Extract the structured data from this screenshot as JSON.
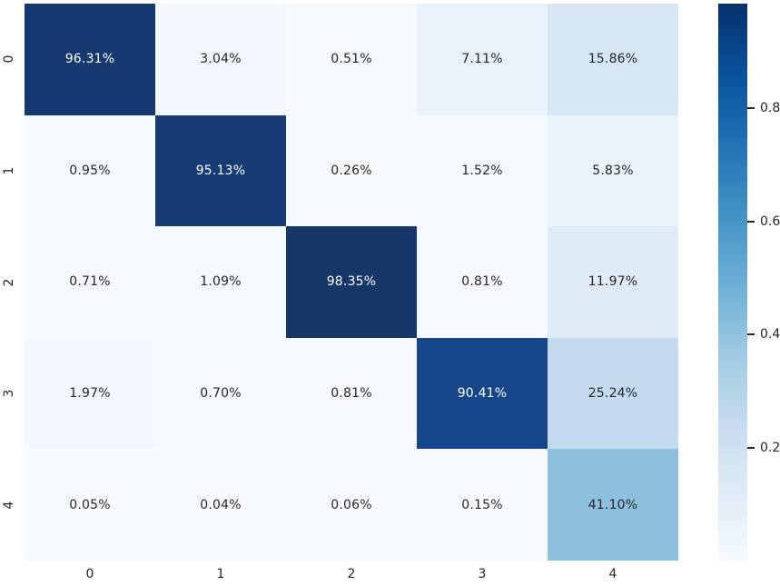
{
  "figure": {
    "kind": "confusion-matrix-heatmap",
    "background": "#ffffff",
    "annotation_dark_text": "#262626",
    "annotation_light_text": "#ffffff"
  },
  "chart_data": {
    "type": "heatmap",
    "title": "",
    "xlabel": "",
    "ylabel": "",
    "x_labels": [
      "0",
      "1",
      "2",
      "3",
      "4"
    ],
    "y_labels": [
      "0",
      "1",
      "2",
      "3",
      "4"
    ],
    "cell_labels": [
      [
        "96.31%",
        "3.04%",
        "0.51%",
        "7.11%",
        "15.86%"
      ],
      [
        "0.95%",
        "95.13%",
        "0.26%",
        "1.52%",
        "5.83%"
      ],
      [
        "0.71%",
        "1.09%",
        "98.35%",
        "0.81%",
        "11.97%"
      ],
      [
        "1.97%",
        "0.70%",
        "0.81%",
        "90.41%",
        "25.24%"
      ],
      [
        "0.05%",
        "0.04%",
        "0.06%",
        "0.15%",
        "41.10%"
      ]
    ],
    "cell_values": [
      [
        0.9631,
        0.0304,
        0.0051,
        0.0711,
        0.1586
      ],
      [
        0.0095,
        0.9513,
        0.0026,
        0.0152,
        0.0583
      ],
      [
        0.0071,
        0.0109,
        0.9835,
        0.0081,
        0.1197
      ],
      [
        0.0197,
        0.007,
        0.0081,
        0.9041,
        0.2524
      ],
      [
        0.0005,
        0.0004,
        0.0006,
        0.0015,
        0.411
      ]
    ],
    "cell_bg": [
      [
        "#14386f",
        "#f1f7fd",
        "#f6fafe",
        "#e9f2fa",
        "#d7e6f5"
      ],
      [
        "#f5fafe",
        "#173b74",
        "#f7fbfe",
        "#f4f9fe",
        "#ebf3fb"
      ],
      [
        "#f6fafe",
        "#f5fafe",
        "#163568",
        "#f6fafe",
        "#dfecf7"
      ],
      [
        "#f3f8fe",
        "#f6fafe",
        "#f6fafe",
        "#164689",
        "#c4daee"
      ],
      [
        "#f7fbff",
        "#f7fbff",
        "#f7fbff",
        "#f7fbff",
        "#8dc0dd"
      ]
    ],
    "cell_fg": [
      [
        "#ffffff",
        "#262626",
        "#262626",
        "#262626",
        "#262626"
      ],
      [
        "#262626",
        "#ffffff",
        "#262626",
        "#262626",
        "#262626"
      ],
      [
        "#262626",
        "#262626",
        "#ffffff",
        "#262626",
        "#262626"
      ],
      [
        "#262626",
        "#262626",
        "#262626",
        "#ffffff",
        "#262626"
      ],
      [
        "#262626",
        "#262626",
        "#262626",
        "#262626",
        "#262626"
      ]
    ],
    "colormap": "Blues",
    "grid": false,
    "legend_position": "colorbar-right",
    "colorbar": {
      "vmin": 0.0004,
      "vmax": 0.9835,
      "tick_labels": [
        "0.8",
        "0.6",
        "0.4",
        "0.2"
      ],
      "tick_values": [
        0.8,
        0.6,
        0.4,
        0.2
      ],
      "gradient_top_to_bottom": [
        "#08306b",
        "#08519c",
        "#2171b5",
        "#4292c6",
        "#6baed6",
        "#9ecae1",
        "#c6dbef",
        "#deebf7",
        "#f7fbff"
      ]
    }
  }
}
